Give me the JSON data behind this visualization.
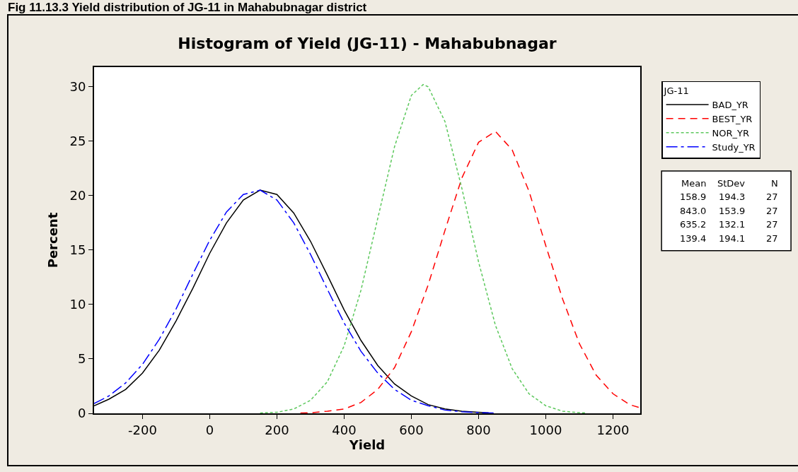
{
  "chart_data": {
    "type": "line",
    "title": "Histogram of Yield (JG-11) - Mahabubnagar",
    "xlabel": "Yield",
    "ylabel": "Percent",
    "legend_title": "JG-11",
    "legend": "top right",
    "grid": false,
    "marker": "none",
    "xlim": [
      -344,
      1281
    ],
    "xticks": [
      -200,
      0,
      200,
      400,
      600,
      800,
      1000,
      1200
    ],
    "ylim": [
      0,
      31.8
    ],
    "yticks": [
      0,
      5,
      10,
      15,
      20,
      25,
      30
    ],
    "annotations": [
      "Fig 11.13.3 Yield distribution of JG-11 in Mahabubnagar district",
      "Mean StDev N",
      "158.9 194.3 27",
      "843.0 153.9 27",
      "635.2 132.1 27",
      "139.4 194.1 27"
    ],
    "series": [
      {
        "name": "BAD_YR",
        "color": "#000000",
        "line_style": "solid",
        "x": [
          -344,
          -300,
          -250,
          -200,
          -150,
          -100,
          -50,
          0,
          50,
          100,
          150,
          200,
          250,
          300,
          350,
          400,
          450,
          500,
          550,
          600,
          650,
          700,
          750,
          800,
          830
        ],
        "values": [
          0.7,
          1.3,
          2.2,
          3.7,
          5.8,
          8.5,
          11.5,
          14.7,
          17.5,
          19.6,
          20.5,
          20.1,
          18.4,
          15.8,
          12.7,
          9.5,
          6.7,
          4.4,
          2.7,
          1.6,
          0.8,
          0.4,
          0.2,
          0.1,
          0.05
        ]
      },
      {
        "name": "BEST_YR",
        "color": "#ff0000",
        "line_style": "dashed",
        "x": [
          270,
          300,
          350,
          400,
          450,
          500,
          550,
          600,
          650,
          700,
          750,
          800,
          850,
          900,
          950,
          1000,
          1050,
          1100,
          1150,
          1200,
          1250,
          1281
        ],
        "values": [
          0.03,
          0.05,
          0.2,
          0.4,
          1.0,
          2.2,
          4.2,
          7.5,
          11.8,
          16.8,
          21.6,
          24.9,
          25.9,
          24.2,
          20.4,
          15.4,
          10.5,
          6.4,
          3.5,
          1.8,
          0.8,
          0.5
        ]
      },
      {
        "name": "NOR_YR",
        "color": "#5cc85c",
        "line_style": "dotted",
        "x": [
          150,
          200,
          250,
          300,
          350,
          400,
          450,
          500,
          550,
          600,
          635,
          650,
          700,
          750,
          800,
          850,
          900,
          950,
          1000,
          1050,
          1100,
          1120
        ],
        "values": [
          0.04,
          0.1,
          0.4,
          1.2,
          2.9,
          6.2,
          11.3,
          17.9,
          24.5,
          29.2,
          30.2,
          30.0,
          26.8,
          20.7,
          13.9,
          8.1,
          4.1,
          1.8,
          0.7,
          0.2,
          0.06,
          0.04
        ]
      },
      {
        "name": "Study_YR",
        "color": "#0000ff",
        "line_style": "dashdot",
        "x": [
          -344,
          -300,
          -250,
          -200,
          -150,
          -100,
          -50,
          0,
          50,
          100,
          150,
          200,
          250,
          300,
          350,
          400,
          450,
          500,
          550,
          600,
          650,
          700,
          750,
          800,
          850
        ],
        "values": [
          0.9,
          1.6,
          2.8,
          4.5,
          6.8,
          9.6,
          12.8,
          15.9,
          18.5,
          20.1,
          20.5,
          19.6,
          17.5,
          14.6,
          11.4,
          8.3,
          5.7,
          3.7,
          2.2,
          1.2,
          0.7,
          0.3,
          0.15,
          0.06,
          0.03
        ]
      }
    ]
  }
}
